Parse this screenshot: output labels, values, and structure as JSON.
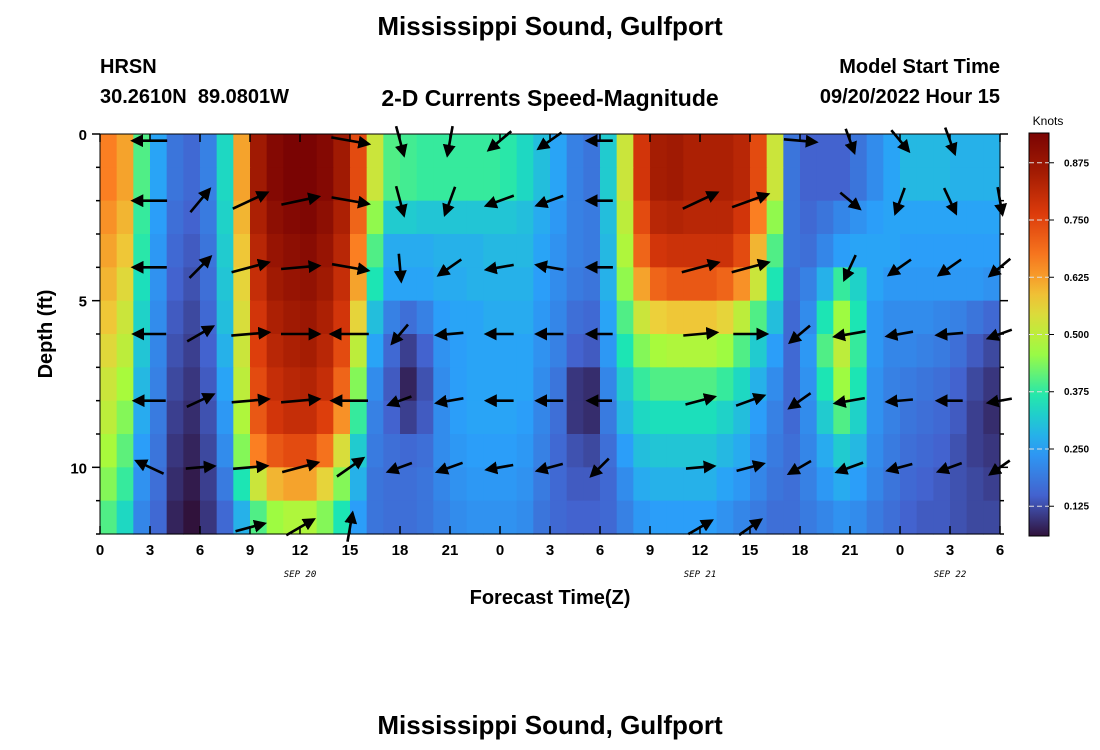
{
  "page": {
    "title": "Mississippi Sound, Gulfport",
    "station_id": "HRSN",
    "station_coords": "30.2610N  89.0801W",
    "subtitle": "2-D Currents Speed-Magnitude",
    "model_label": "Model Start Time",
    "model_time": "09/20/2022 Hour 15",
    "footer_title": "Mississippi Sound, Gulfport"
  },
  "chart_data": {
    "type": "heatmap",
    "xlabel": "Forecast Time(Z)",
    "ylabel": "Depth (ft)",
    "colorbar_label": "Knots",
    "xlim": [
      0,
      54
    ],
    "ylim": [
      0,
      12
    ],
    "x_ticks": [
      {
        "h": 0,
        "label": "0"
      },
      {
        "h": 3,
        "label": "3"
      },
      {
        "h": 6,
        "label": "6"
      },
      {
        "h": 9,
        "label": "9"
      },
      {
        "h": 12,
        "label": "12"
      },
      {
        "h": 15,
        "label": "15"
      },
      {
        "h": 18,
        "label": "18"
      },
      {
        "h": 21,
        "label": "21"
      },
      {
        "h": 24,
        "label": "0"
      },
      {
        "h": 27,
        "label": "3"
      },
      {
        "h": 30,
        "label": "6"
      },
      {
        "h": 33,
        "label": "9"
      },
      {
        "h": 36,
        "label": "12"
      },
      {
        "h": 39,
        "label": "15"
      },
      {
        "h": 42,
        "label": "18"
      },
      {
        "h": 45,
        "label": "21"
      },
      {
        "h": 48,
        "label": "0"
      },
      {
        "h": 51,
        "label": "3"
      },
      {
        "h": 54,
        "label": "6"
      }
    ],
    "date_labels": [
      {
        "h": 12,
        "label": "SEP 20"
      },
      {
        "h": 36,
        "label": "SEP 21"
      },
      {
        "h": 51,
        "label": "SEP 22"
      }
    ],
    "y_ticks": [
      {
        "depth": 0,
        "label": "0"
      },
      {
        "depth": 5,
        "label": "5"
      },
      {
        "depth": 10,
        "label": "10"
      }
    ],
    "colorbar": {
      "min": 0.06,
      "max": 0.94,
      "ticks": [
        "0.125",
        "0.250",
        "0.375",
        "0.500",
        "0.625",
        "0.750",
        "0.875"
      ]
    },
    "depths": [
      0.5,
      1.5,
      2.5,
      3.5,
      4.5,
      5.5,
      6.5,
      7.5,
      8.5,
      9.5,
      10.5,
      11.5
    ],
    "hours": [
      0,
      1,
      2,
      3,
      4,
      5,
      6,
      7,
      8,
      9,
      10,
      11,
      12,
      13,
      14,
      15,
      16,
      17,
      18,
      19,
      20,
      21,
      22,
      23,
      24,
      25,
      26,
      27,
      28,
      29,
      30,
      31,
      32,
      33,
      34,
      35,
      36,
      37,
      38,
      39,
      40,
      41,
      42,
      43,
      44,
      45,
      46,
      47,
      48,
      49,
      50,
      51,
      52,
      53
    ],
    "speed_knots": [
      [
        0.66,
        0.62,
        0.4,
        0.26,
        0.18,
        0.16,
        0.2,
        0.34,
        0.62,
        0.86,
        0.92,
        0.94,
        0.95,
        0.92,
        0.86,
        0.74,
        0.52,
        0.4,
        0.39,
        0.38,
        0.38,
        0.38,
        0.38,
        0.38,
        0.37,
        0.34,
        0.3,
        0.26,
        0.2,
        0.18,
        0.32,
        0.52,
        0.78,
        0.85,
        0.86,
        0.84,
        0.84,
        0.84,
        0.82,
        0.74,
        0.52,
        0.18,
        0.15,
        0.15,
        0.15,
        0.18,
        0.22,
        0.26,
        0.29,
        0.29,
        0.29,
        0.28,
        0.28,
        0.28
      ],
      [
        0.66,
        0.62,
        0.4,
        0.26,
        0.18,
        0.16,
        0.2,
        0.34,
        0.62,
        0.86,
        0.92,
        0.94,
        0.95,
        0.92,
        0.86,
        0.74,
        0.52,
        0.4,
        0.39,
        0.38,
        0.38,
        0.38,
        0.38,
        0.38,
        0.37,
        0.34,
        0.3,
        0.26,
        0.2,
        0.18,
        0.32,
        0.52,
        0.78,
        0.85,
        0.86,
        0.84,
        0.84,
        0.84,
        0.82,
        0.74,
        0.52,
        0.18,
        0.15,
        0.15,
        0.15,
        0.18,
        0.22,
        0.26,
        0.29,
        0.29,
        0.29,
        0.28,
        0.28,
        0.28
      ],
      [
        0.64,
        0.6,
        0.38,
        0.25,
        0.17,
        0.15,
        0.19,
        0.33,
        0.6,
        0.84,
        0.9,
        0.92,
        0.93,
        0.9,
        0.84,
        0.7,
        0.45,
        0.32,
        0.32,
        0.31,
        0.31,
        0.31,
        0.31,
        0.31,
        0.31,
        0.3,
        0.27,
        0.24,
        0.2,
        0.19,
        0.3,
        0.5,
        0.74,
        0.82,
        0.83,
        0.82,
        0.82,
        0.82,
        0.78,
        0.66,
        0.45,
        0.18,
        0.16,
        0.18,
        0.21,
        0.23,
        0.25,
        0.26,
        0.26,
        0.26,
        0.26,
        0.26,
        0.26,
        0.26
      ],
      [
        0.62,
        0.58,
        0.37,
        0.24,
        0.16,
        0.14,
        0.18,
        0.32,
        0.58,
        0.82,
        0.88,
        0.9,
        0.91,
        0.88,
        0.82,
        0.66,
        0.4,
        0.27,
        0.27,
        0.27,
        0.28,
        0.28,
        0.28,
        0.29,
        0.29,
        0.29,
        0.26,
        0.23,
        0.2,
        0.19,
        0.29,
        0.48,
        0.7,
        0.78,
        0.79,
        0.79,
        0.79,
        0.79,
        0.74,
        0.6,
        0.4,
        0.18,
        0.17,
        0.21,
        0.25,
        0.26,
        0.26,
        0.26,
        0.25,
        0.25,
        0.25,
        0.25,
        0.25,
        0.25
      ],
      [
        0.6,
        0.55,
        0.35,
        0.23,
        0.15,
        0.13,
        0.17,
        0.31,
        0.56,
        0.8,
        0.86,
        0.88,
        0.89,
        0.86,
        0.8,
        0.62,
        0.36,
        0.26,
        0.26,
        0.26,
        0.27,
        0.27,
        0.28,
        0.28,
        0.28,
        0.28,
        0.25,
        0.22,
        0.19,
        0.18,
        0.28,
        0.45,
        0.62,
        0.7,
        0.72,
        0.72,
        0.72,
        0.7,
        0.64,
        0.52,
        0.36,
        0.17,
        0.2,
        0.28,
        0.38,
        0.33,
        0.26,
        0.24,
        0.24,
        0.24,
        0.24,
        0.24,
        0.24,
        0.23
      ],
      [
        0.58,
        0.52,
        0.33,
        0.22,
        0.14,
        0.12,
        0.16,
        0.3,
        0.54,
        0.78,
        0.84,
        0.86,
        0.87,
        0.84,
        0.78,
        0.56,
        0.3,
        0.2,
        0.17,
        0.2,
        0.25,
        0.26,
        0.26,
        0.27,
        0.27,
        0.27,
        0.24,
        0.21,
        0.17,
        0.16,
        0.26,
        0.4,
        0.52,
        0.57,
        0.58,
        0.58,
        0.58,
        0.56,
        0.5,
        0.4,
        0.3,
        0.16,
        0.22,
        0.36,
        0.46,
        0.36,
        0.24,
        0.22,
        0.22,
        0.22,
        0.21,
        0.2,
        0.18,
        0.16
      ],
      [
        0.55,
        0.5,
        0.31,
        0.21,
        0.13,
        0.11,
        0.15,
        0.28,
        0.52,
        0.76,
        0.82,
        0.84,
        0.85,
        0.82,
        0.74,
        0.5,
        0.26,
        0.16,
        0.11,
        0.15,
        0.23,
        0.25,
        0.26,
        0.26,
        0.26,
        0.26,
        0.23,
        0.2,
        0.15,
        0.14,
        0.24,
        0.36,
        0.44,
        0.47,
        0.48,
        0.48,
        0.48,
        0.46,
        0.4,
        0.32,
        0.25,
        0.16,
        0.24,
        0.4,
        0.5,
        0.38,
        0.24,
        0.21,
        0.21,
        0.2,
        0.19,
        0.17,
        0.14,
        0.12
      ],
      [
        0.52,
        0.47,
        0.29,
        0.2,
        0.12,
        0.1,
        0.14,
        0.26,
        0.5,
        0.74,
        0.8,
        0.82,
        0.83,
        0.8,
        0.7,
        0.44,
        0.22,
        0.14,
        0.08,
        0.13,
        0.22,
        0.25,
        0.26,
        0.26,
        0.26,
        0.26,
        0.22,
        0.18,
        0.1,
        0.09,
        0.21,
        0.32,
        0.38,
        0.4,
        0.4,
        0.4,
        0.4,
        0.38,
        0.34,
        0.28,
        0.22,
        0.16,
        0.23,
        0.36,
        0.46,
        0.36,
        0.23,
        0.2,
        0.19,
        0.18,
        0.17,
        0.15,
        0.12,
        0.1
      ],
      [
        0.5,
        0.44,
        0.27,
        0.19,
        0.11,
        0.09,
        0.13,
        0.24,
        0.48,
        0.72,
        0.78,
        0.8,
        0.8,
        0.76,
        0.64,
        0.38,
        0.2,
        0.15,
        0.11,
        0.14,
        0.22,
        0.25,
        0.26,
        0.26,
        0.26,
        0.25,
        0.21,
        0.17,
        0.1,
        0.09,
        0.19,
        0.29,
        0.34,
        0.35,
        0.35,
        0.35,
        0.35,
        0.33,
        0.3,
        0.25,
        0.2,
        0.16,
        0.22,
        0.32,
        0.4,
        0.33,
        0.23,
        0.2,
        0.18,
        0.17,
        0.16,
        0.14,
        0.11,
        0.09
      ],
      [
        0.47,
        0.41,
        0.25,
        0.18,
        0.1,
        0.08,
        0.12,
        0.22,
        0.44,
        0.66,
        0.72,
        0.74,
        0.74,
        0.68,
        0.54,
        0.32,
        0.19,
        0.17,
        0.16,
        0.17,
        0.22,
        0.24,
        0.25,
        0.25,
        0.25,
        0.24,
        0.2,
        0.16,
        0.13,
        0.12,
        0.17,
        0.25,
        0.3,
        0.31,
        0.31,
        0.31,
        0.31,
        0.29,
        0.27,
        0.23,
        0.19,
        0.17,
        0.21,
        0.27,
        0.32,
        0.29,
        0.22,
        0.19,
        0.17,
        0.16,
        0.15,
        0.13,
        0.11,
        0.1
      ],
      [
        0.44,
        0.38,
        0.23,
        0.17,
        0.09,
        0.07,
        0.11,
        0.19,
        0.36,
        0.52,
        0.6,
        0.62,
        0.62,
        0.56,
        0.44,
        0.28,
        0.18,
        0.17,
        0.17,
        0.18,
        0.21,
        0.23,
        0.24,
        0.24,
        0.24,
        0.23,
        0.19,
        0.16,
        0.14,
        0.14,
        0.16,
        0.22,
        0.27,
        0.28,
        0.28,
        0.28,
        0.28,
        0.26,
        0.24,
        0.21,
        0.18,
        0.17,
        0.2,
        0.24,
        0.27,
        0.25,
        0.21,
        0.18,
        0.16,
        0.15,
        0.14,
        0.13,
        0.12,
        0.11
      ],
      [
        0.4,
        0.34,
        0.21,
        0.16,
        0.08,
        0.06,
        0.1,
        0.16,
        0.28,
        0.4,
        0.46,
        0.48,
        0.48,
        0.44,
        0.36,
        0.25,
        0.18,
        0.17,
        0.17,
        0.18,
        0.2,
        0.22,
        0.23,
        0.23,
        0.23,
        0.22,
        0.18,
        0.16,
        0.15,
        0.15,
        0.16,
        0.2,
        0.24,
        0.25,
        0.25,
        0.25,
        0.25,
        0.23,
        0.21,
        0.19,
        0.17,
        0.17,
        0.19,
        0.21,
        0.23,
        0.22,
        0.19,
        0.17,
        0.15,
        0.14,
        0.14,
        0.13,
        0.12,
        0.12
      ]
    ],
    "vector_depths": [
      0.2,
      2.0,
      4.0,
      6.0,
      8.0,
      10.0,
      11.8
    ],
    "vector_hours": [
      0,
      3,
      6,
      9,
      12,
      15,
      18,
      21,
      24,
      27,
      30,
      33,
      36,
      39,
      42,
      45,
      48,
      51,
      54
    ],
    "vector_dir_deg": [
      [
        null,
        180,
        null,
        null,
        null,
        -10,
        -75,
        -100,
        -140,
        -145,
        180,
        null,
        null,
        null,
        -5,
        -70,
        -50,
        -70,
        null
      ],
      [
        null,
        180,
        50,
        25,
        12,
        -10,
        -75,
        -110,
        -160,
        -160,
        180,
        null,
        25,
        20,
        null,
        -40,
        -110,
        -65,
        -80
      ],
      [
        null,
        180,
        45,
        15,
        5,
        -10,
        -85,
        -145,
        -170,
        170,
        180,
        null,
        15,
        15,
        null,
        -115,
        -145,
        -145,
        -140
      ],
      [
        null,
        180,
        30,
        5,
        0,
        180,
        -130,
        -175,
        180,
        180,
        180,
        null,
        5,
        0,
        -140,
        -170,
        -170,
        -175,
        -160
      ],
      [
        null,
        180,
        25,
        5,
        5,
        180,
        -160,
        -170,
        180,
        180,
        180,
        null,
        15,
        20,
        -145,
        -170,
        -175,
        180,
        -170
      ],
      [
        null,
        155,
        5,
        5,
        15,
        35,
        -160,
        -160,
        -170,
        -165,
        -135,
        null,
        5,
        15,
        -150,
        -160,
        -165,
        -160,
        -145
      ],
      [
        null,
        null,
        null,
        15,
        30,
        80,
        null,
        null,
        null,
        null,
        null,
        null,
        30,
        35,
        null,
        null,
        null,
        null,
        null
      ]
    ],
    "vector_knots": [
      [
        null,
        0.62,
        null,
        null,
        null,
        0.85,
        0.4,
        0.38,
        0.37,
        0.3,
        0.18,
        null,
        null,
        null,
        0.52,
        0.16,
        0.26,
        0.29,
        null
      ],
      [
        null,
        0.61,
        0.4,
        0.85,
        0.94,
        0.77,
        0.4,
        0.38,
        0.37,
        0.3,
        0.18,
        null,
        0.85,
        0.84,
        null,
        0.16,
        0.26,
        0.29,
        0.28
      ],
      [
        null,
        0.58,
        0.39,
        0.83,
        0.89,
        0.73,
        0.27,
        0.28,
        0.29,
        0.26,
        0.19,
        null,
        0.78,
        0.79,
        null,
        0.25,
        0.24,
        0.25,
        0.25
      ],
      [
        null,
        0.52,
        0.38,
        0.78,
        0.86,
        0.78,
        0.14,
        0.25,
        0.27,
        0.24,
        0.17,
        null,
        0.58,
        0.57,
        0.2,
        0.46,
        0.22,
        0.21,
        0.16
      ],
      [
        null,
        0.47,
        0.36,
        0.74,
        0.8,
        0.7,
        0.11,
        0.26,
        0.26,
        0.22,
        0.1,
        null,
        0.4,
        0.38,
        0.2,
        0.4,
        0.19,
        0.17,
        0.1
      ],
      [
        null,
        0.4,
        0.33,
        0.6,
        0.74,
        0.5,
        0.17,
        0.24,
        0.24,
        0.23,
        0.14,
        null,
        0.31,
        0.29,
        0.17,
        0.29,
        0.17,
        0.15,
        0.1
      ],
      [
        null,
        null,
        null,
        0.4,
        0.48,
        0.36,
        null,
        null,
        null,
        null,
        null,
        null,
        0.25,
        0.23,
        null,
        null,
        null,
        null,
        null
      ]
    ]
  }
}
